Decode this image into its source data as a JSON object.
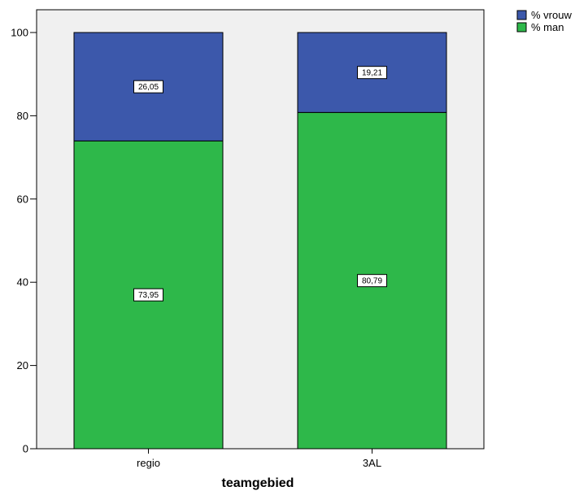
{
  "chart_data": {
    "type": "bar",
    "stacked": true,
    "categories": [
      "regio",
      "3AL"
    ],
    "series": [
      {
        "name": "% man",
        "values": [
          73.95,
          80.79
        ],
        "labels": [
          "73,95",
          "80,79"
        ],
        "color": "#2eb84a"
      },
      {
        "name": "% vrouw",
        "values": [
          26.05,
          19.21
        ],
        "labels": [
          "26,05",
          "19,21"
        ],
        "color": "#3c58ab"
      }
    ],
    "title": "",
    "xlabel": "teamgebied",
    "ylabel": "",
    "ylim": [
      0,
      100
    ],
    "yticks": [
      0,
      20,
      40,
      60,
      80,
      100
    ],
    "grid": false,
    "legend": {
      "position": "top-right",
      "order": [
        "% vrouw",
        "% man"
      ]
    },
    "plot_background": "#f0f0f0"
  }
}
